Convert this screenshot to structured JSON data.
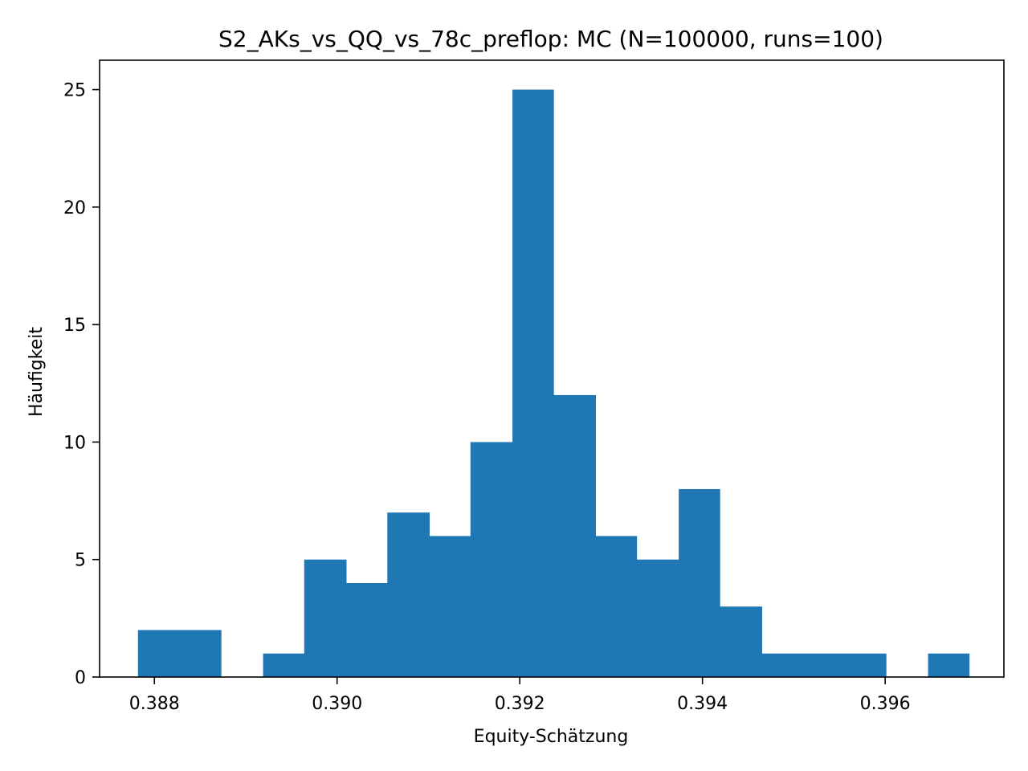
{
  "chart_data": {
    "type": "histogram",
    "title": "S2_AKs_vs_QQ_vs_78c_preflop: MC (N=100000, runs=100)",
    "xlabel": "Equity-Schätzung",
    "ylabel": "Häufigkeit",
    "xlim": [
      0.3874,
      0.3973
    ],
    "ylim": [
      0,
      26.25
    ],
    "bin_edges": [
      0.38782,
      0.38828,
      0.38873,
      0.38919,
      0.38964,
      0.3901,
      0.39055,
      0.39101,
      0.39146,
      0.39192,
      0.39237,
      0.39283,
      0.39328,
      0.39374,
      0.39419,
      0.39465,
      0.3951,
      0.39556,
      0.39601,
      0.39647,
      0.39692
    ],
    "counts": [
      2,
      2,
      0,
      1,
      5,
      4,
      7,
      6,
      10,
      25,
      12,
      6,
      5,
      8,
      3,
      1,
      1,
      1,
      0,
      1
    ],
    "bar_color": "#1f77b4",
    "x_ticks": [
      "0.388",
      "0.390",
      "0.392",
      "0.394",
      "0.396"
    ],
    "x_tick_values": [
      0.388,
      0.39,
      0.392,
      0.394,
      0.396
    ],
    "y_ticks": [
      "0",
      "5",
      "10",
      "15",
      "20",
      "25"
    ],
    "y_tick_values": [
      0,
      5,
      10,
      15,
      20,
      25
    ],
    "grid": false,
    "legend": "none"
  }
}
